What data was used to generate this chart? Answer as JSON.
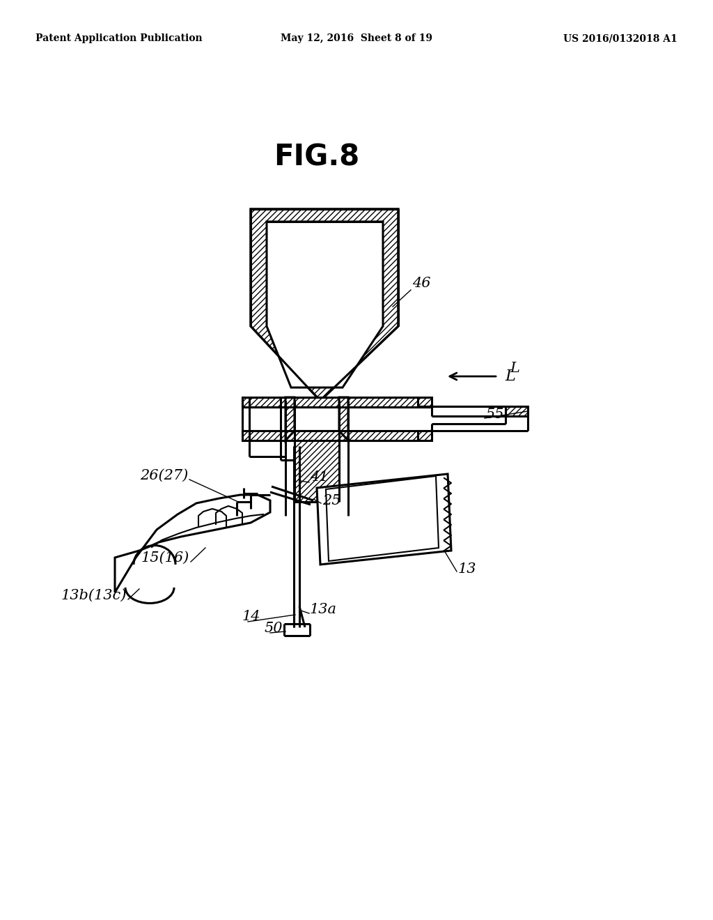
{
  "bg_color": "#ffffff",
  "line_color": "#000000",
  "header_left": "Patent Application Publication",
  "header_mid": "May 12, 2016  Sheet 8 of 19",
  "header_right": "US 2016/0132018 A1",
  "fig_label": "FIG.8"
}
